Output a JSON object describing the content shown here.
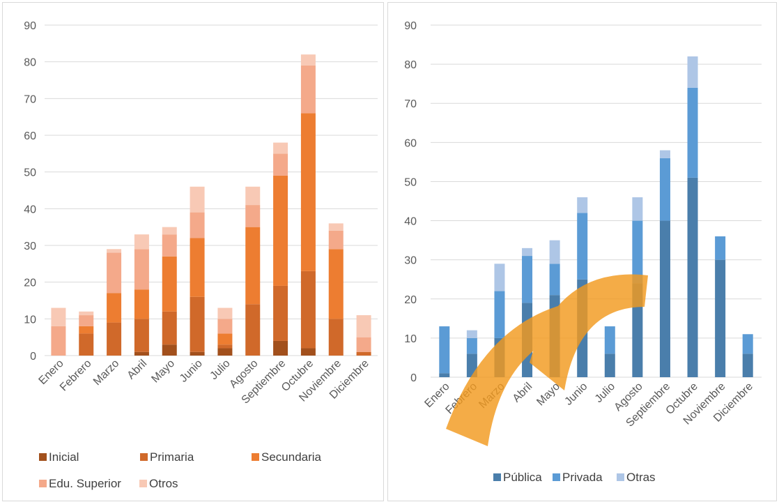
{
  "chart_data": [
    {
      "type": "bar",
      "stacked": true,
      "categories": [
        "Enero",
        "Febrero",
        "Marzo",
        "Abril",
        "Mayo",
        "Junio",
        "Julio",
        "Agosto",
        "Septiembre",
        "Octubre",
        "Noviembre",
        "Diciembre"
      ],
      "ylim": [
        0,
        90
      ],
      "yticks": [
        0,
        10,
        20,
        30,
        40,
        50,
        60,
        70,
        80,
        90
      ],
      "grid": true,
      "legend_position": "bottom",
      "series": [
        {
          "name": "Inicial",
          "color": "#a2501c",
          "values": [
            0,
            0,
            0,
            1,
            3,
            1,
            2,
            0,
            4,
            2,
            0,
            0
          ]
        },
        {
          "name": "Primaria",
          "color": "#d0692a",
          "values": [
            0,
            6,
            9,
            9,
            9,
            15,
            1,
            14,
            15,
            21,
            10,
            1
          ]
        },
        {
          "name": "Secundaria",
          "color": "#ed7d31",
          "values": [
            0,
            2,
            8,
            8,
            15,
            16,
            3,
            21,
            30,
            43,
            19,
            0
          ]
        },
        {
          "name": "Edu. Superior",
          "color": "#f4a98a",
          "values": [
            8,
            3,
            11,
            11,
            6,
            7,
            4,
            6,
            6,
            13,
            5,
            4
          ]
        },
        {
          "name": "Otros",
          "color": "#f8c9b5",
          "values": [
            5,
            1,
            1,
            4,
            2,
            7,
            3,
            5,
            3,
            3,
            2,
            6
          ]
        }
      ]
    },
    {
      "type": "bar",
      "stacked": true,
      "categories": [
        "Enero",
        "Febrero",
        "Marzo",
        "Abril",
        "Mayo",
        "Junio",
        "Julio",
        "Agosto",
        "Septiembre",
        "Octubre",
        "Noviembre",
        "Diciembre"
      ],
      "ylim": [
        0,
        90
      ],
      "yticks": [
        0,
        10,
        20,
        30,
        40,
        50,
        60,
        70,
        80,
        90
      ],
      "grid": true,
      "legend_position": "bottom",
      "series": [
        {
          "name": "Pública",
          "color": "#4a7eab",
          "values": [
            1,
            6,
            10,
            19,
            21,
            25,
            6,
            24,
            40,
            51,
            30,
            6
          ]
        },
        {
          "name": "Privada",
          "color": "#5b9bd5",
          "values": [
            12,
            4,
            12,
            12,
            8,
            17,
            7,
            16,
            16,
            23,
            6,
            5
          ]
        },
        {
          "name": "Otras",
          "color": "#aec6e6",
          "values": [
            0,
            2,
            7,
            2,
            6,
            4,
            0,
            6,
            2,
            8,
            0,
            0
          ]
        }
      ]
    }
  ]
}
